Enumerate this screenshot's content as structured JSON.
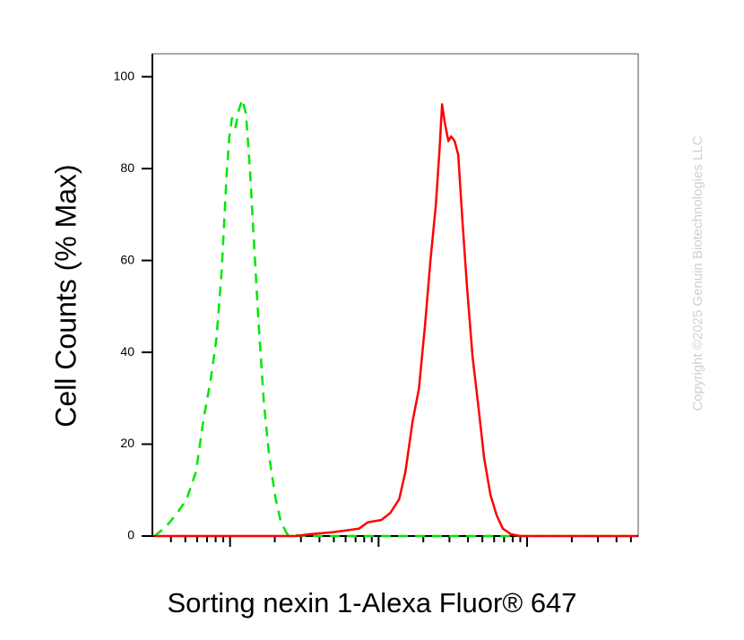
{
  "chart_data": {
    "type": "line",
    "x_label": "Sorting nexin 1-Alexa Fluor® 647",
    "y_label": "Cell Counts (% Max)",
    "watermark": "Copyright ©2025 Genuin Biotechnologies LLC",
    "x_scale": "log",
    "xlim": [
      30,
      56000
    ],
    "xticks": [
      40,
      50,
      60,
      70,
      80,
      90,
      100,
      200,
      300,
      400,
      500,
      600,
      700,
      800,
      900,
      1000,
      2000,
      3000,
      4000,
      5000,
      6000,
      7000,
      8000,
      9000,
      10000,
      20000,
      30000,
      40000,
      50000
    ],
    "ylim": [
      0,
      105
    ],
    "yticks": [
      0,
      20,
      40,
      60,
      80,
      100
    ],
    "series": [
      {
        "color": "#00e600",
        "dashed": true,
        "x": [
          31,
          37,
          44,
          51,
          59,
          66,
          74,
          81,
          88,
          95,
          99,
          103,
          109,
          115,
          121,
          128,
          136,
          146,
          156,
          169,
          184,
          203,
          220,
          243,
          321,
          1000,
          10000,
          55000
        ],
        "values": [
          0,
          2,
          5,
          8,
          14,
          25,
          34,
          43,
          58,
          79,
          87,
          91,
          89,
          93,
          95,
          92,
          80,
          62,
          46,
          29,
          17,
          8,
          3,
          0.4,
          0,
          0,
          0,
          0
        ]
      },
      {
        "color": "#ff0000",
        "dashed": false,
        "x": [
          31,
          279,
          344,
          486,
          737,
          847,
          1043,
          1198,
          1376,
          1516,
          1694,
          1867,
          2057,
          2235,
          2430,
          2570,
          2679,
          2793,
          2952,
          3077,
          3252,
          3438,
          3681,
          3945,
          4292,
          4665,
          5140,
          5662,
          6237,
          6873,
          7794,
          8954,
          55000
        ],
        "values": [
          0,
          0,
          0.4,
          0.8,
          1.6,
          3,
          3.5,
          5,
          8,
          14,
          25,
          32,
          46,
          60,
          72,
          84,
          94,
          90,
          86,
          87,
          86,
          83,
          68,
          54,
          39,
          29,
          17,
          9,
          4.5,
          1.6,
          0.4,
          0,
          0
        ]
      }
    ]
  }
}
